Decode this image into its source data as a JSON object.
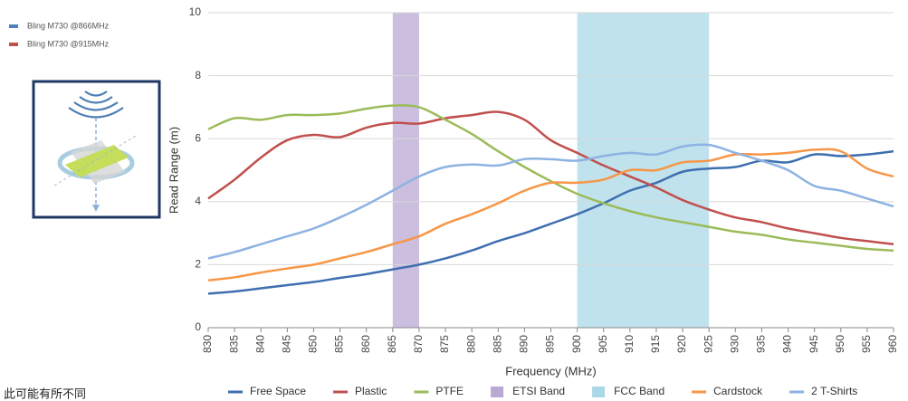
{
  "chart_data": {
    "type": "line",
    "side_legend": [
      {
        "name": "Bling M730 @866MHz",
        "color": "#4f81bd"
      },
      {
        "name": "Bling M730 @915MHz",
        "color": "#c0504d"
      }
    ],
    "note": "此可能有所不同",
    "x_label": "Frequency (MHz)",
    "y_label": "Read Range (m)",
    "x": [
      830,
      835,
      840,
      845,
      850,
      855,
      860,
      865,
      870,
      875,
      880,
      885,
      890,
      895,
      900,
      905,
      910,
      915,
      920,
      925,
      930,
      935,
      940,
      945,
      950,
      955,
      960
    ],
    "xlim": [
      830,
      960
    ],
    "xticks": [
      830,
      835,
      840,
      845,
      850,
      855,
      860,
      865,
      870,
      875,
      880,
      885,
      890,
      895,
      900,
      905,
      910,
      915,
      920,
      925,
      930,
      935,
      940,
      945,
      950,
      955,
      960
    ],
    "ylim": [
      0,
      10
    ],
    "yticks": [
      0,
      2,
      4,
      6,
      8,
      10
    ],
    "grid": true,
    "smooth": true,
    "legend": "bottom",
    "series": [
      {
        "name": "Free Space",
        "color": "#3f6fb0",
        "values": [
          1.08,
          1.15,
          1.25,
          1.35,
          1.45,
          1.58,
          1.7,
          1.85,
          2.0,
          2.2,
          2.45,
          2.75,
          3.0,
          3.3,
          3.6,
          3.95,
          4.35,
          4.6,
          4.95,
          5.05,
          5.1,
          5.3,
          5.25,
          5.5,
          5.45,
          5.5,
          5.6
        ]
      },
      {
        "name": "Plastic",
        "color": "#c0504d",
        "values": [
          4.1,
          4.7,
          5.4,
          5.95,
          6.12,
          6.05,
          6.35,
          6.5,
          6.48,
          6.65,
          6.75,
          6.85,
          6.6,
          5.95,
          5.55,
          5.15,
          4.8,
          4.45,
          4.05,
          3.75,
          3.5,
          3.35,
          3.15,
          3.0,
          2.85,
          2.75,
          2.65
        ]
      },
      {
        "name": "PTFE",
        "color": "#9bbb59",
        "values": [
          6.3,
          6.65,
          6.6,
          6.75,
          6.75,
          6.8,
          6.95,
          7.05,
          7.0,
          6.6,
          6.15,
          5.6,
          5.1,
          4.65,
          4.25,
          3.95,
          3.7,
          3.5,
          3.35,
          3.2,
          3.05,
          2.95,
          2.8,
          2.7,
          2.6,
          2.5,
          2.45
        ]
      },
      {
        "name": "ETSI Band",
        "color": "#b9a8d4",
        "x_range": [
          865,
          870
        ]
      },
      {
        "name": "FCC Band",
        "color": "#a9d8e6",
        "x_range": [
          900,
          925
        ]
      },
      {
        "name": "Cardstock",
        "color": "#f79646",
        "values": [
          1.5,
          1.6,
          1.75,
          1.88,
          2.0,
          2.2,
          2.4,
          2.65,
          2.9,
          3.3,
          3.6,
          3.95,
          4.35,
          4.6,
          4.6,
          4.7,
          5.0,
          5.0,
          5.25,
          5.3,
          5.5,
          5.5,
          5.55,
          5.65,
          5.6,
          5.05,
          4.8
        ]
      },
      {
        "name": "2 T-Shirts",
        "color": "#8db3e2",
        "values": [
          2.2,
          2.4,
          2.65,
          2.9,
          3.15,
          3.5,
          3.9,
          4.35,
          4.8,
          5.1,
          5.18,
          5.15,
          5.35,
          5.35,
          5.3,
          5.45,
          5.55,
          5.5,
          5.75,
          5.8,
          5.55,
          5.3,
          5.0,
          4.5,
          4.35,
          4.1,
          3.85
        ]
      }
    ]
  }
}
